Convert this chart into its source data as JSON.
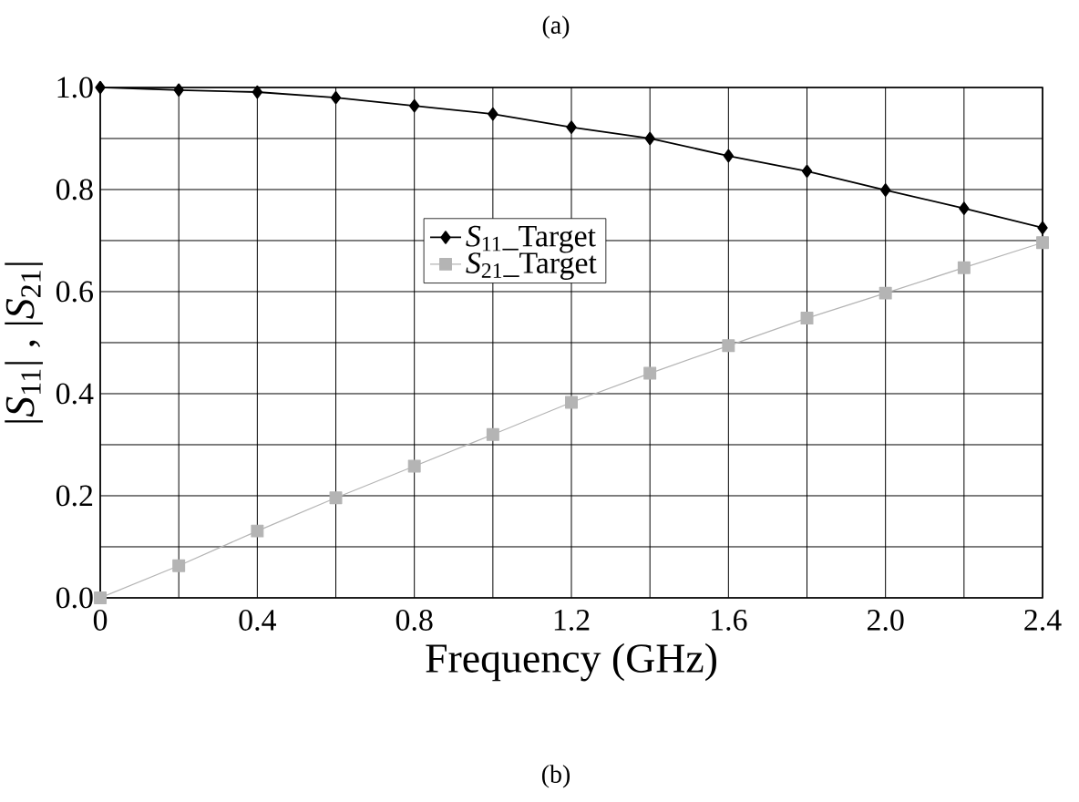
{
  "chart_data": {
    "type": "line",
    "xlabel": "Frequency (GHz)",
    "ylabel": "|*S*$_{11}$| ,  |*S*$_{21}$|",
    "annotations": [
      "(a)",
      "(b)"
    ],
    "x": [
      0,
      0.2,
      0.4,
      0.6,
      0.8,
      1.0,
      1.2,
      1.4,
      1.6,
      1.8,
      2.0,
      2.2,
      2.4
    ],
    "series": [
      {
        "name": "*S*$_{11}$_Target",
        "color": "#000000",
        "marker": "diamond",
        "values": [
          1.0,
          0.995,
          0.991,
          0.98,
          0.964,
          0.948,
          0.922,
          0.9,
          0.866,
          0.836,
          0.799,
          0.763,
          0.725
        ]
      },
      {
        "name": "*S*$_{21}$_Target",
        "color": "#b4b4b4",
        "marker": "square",
        "values": [
          0,
          0.063,
          0.131,
          0.196,
          0.258,
          0.32,
          0.383,
          0.44,
          0.494,
          0.548,
          0.597,
          0.647,
          0.696
        ]
      }
    ],
    "xlim": [
      0,
      2.4
    ],
    "ylim": [
      0,
      1.0
    ],
    "xticks": [
      0,
      {
        "value": 0.2,
        "label": null
      },
      "0.4",
      {
        "value": 0.6,
        "label": null
      },
      0.8,
      {
        "value": 1.0,
        "label": null
      },
      1.2,
      {
        "value": 1.4,
        "label": null
      },
      1.6,
      {
        "value": 1.8,
        "label": null
      },
      {
        "value": 2.0,
        "label": "2.0"
      },
      {
        "value": 2.2,
        "label": null
      },
      2.4
    ],
    "yticks": [
      {
        "value": 0,
        "label": "0.0"
      },
      {
        "value": 0.1,
        "label": null
      },
      0.2,
      {
        "value": 0.3,
        "label": null
      },
      0.4,
      {
        "value": 0.5,
        "label": null
      },
      0.6,
      {
        "value": 0.7,
        "label": null
      },
      0.8,
      {
        "value": 0.9,
        "label": null
      },
      {
        "value": 1.0,
        "label": "1.0"
      }
    ],
    "grid": true,
    "legend": "center",
    "line_style": "solid"
  }
}
